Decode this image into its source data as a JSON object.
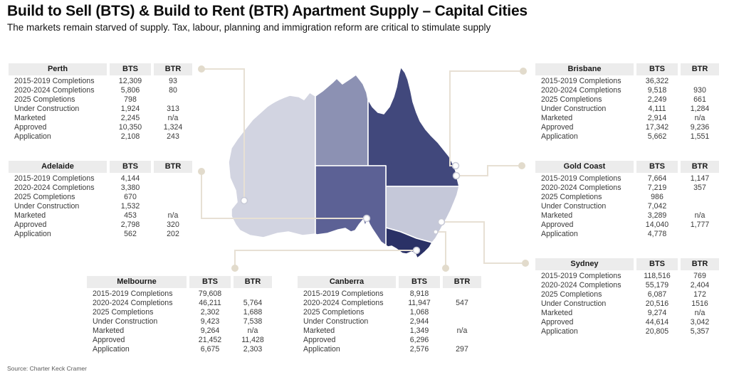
{
  "header": {
    "title": "Build to Sell (BTS) & Build to Rent (BTR) Apartment Supply – Capital Cities",
    "subtitle": "The markets remain starved of supply. Tax, labour, planning and immigration reform are critical to stimulate supply"
  },
  "source": "Source: Charter Keck Cramer",
  "map": {
    "leader_color": "#e7e0d4",
    "end_dot_color": "#e2dbcc",
    "city_dot_fill": "#ffffff",
    "city_dot_stroke": "#c7c9d6",
    "states": [
      {
        "name": "western-australia",
        "color": "#d2d4e1"
      },
      {
        "name": "northern-territory",
        "color": "#8c91b3"
      },
      {
        "name": "queensland",
        "color": "#41487c"
      },
      {
        "name": "south-australia",
        "color": "#5c6195"
      },
      {
        "name": "new-south-wales",
        "color": "#c5c8d9"
      },
      {
        "name": "victoria",
        "color": "#2a3166"
      }
    ]
  },
  "chart_data": {
    "type": "table",
    "title": "BTS & BTR Apartment Supply – Capital Cities",
    "columns": [
      "BTS",
      "BTR"
    ],
    "row_labels": [
      "2015-2019 Completions",
      "2020-2024 Completions",
      "2025 Completions",
      "Under Construction",
      "Marketed",
      "Approved",
      "Application"
    ],
    "cities": [
      {
        "name": "Perth",
        "BTS": [
          "12,309",
          "5,806",
          "798",
          "1,924",
          "2,245",
          "10,350",
          "2,108"
        ],
        "BTR": [
          "93",
          "80",
          "",
          "313",
          "n/a",
          "1,324",
          "243"
        ]
      },
      {
        "name": "Adelaide",
        "BTS": [
          "4,144",
          "3,380",
          "670",
          "1,532",
          "453",
          "2,798",
          "562"
        ],
        "BTR": [
          "",
          "",
          "",
          "",
          "n/a",
          "320",
          "202"
        ]
      },
      {
        "name": "Melbourne",
        "BTS": [
          "79,608",
          "46,211",
          "2,302",
          "9,423",
          "9,264",
          "21,452",
          "6,675"
        ],
        "BTR": [
          "",
          "5,764",
          "1,688",
          "7,538",
          "n/a",
          "11,428",
          "2,303"
        ]
      },
      {
        "name": "Canberra",
        "BTS": [
          "8,918",
          "11,947",
          "1,068",
          "2,944",
          "1,349",
          "6,296",
          "2,576"
        ],
        "BTR": [
          "",
          "547",
          "",
          "",
          "n/a",
          "",
          "297"
        ]
      },
      {
        "name": "Brisbane",
        "BTS": [
          "36,322",
          "9,518",
          "2,249",
          "4,111",
          "2,914",
          "17,342",
          "5,662"
        ],
        "BTR": [
          "",
          "930",
          "661",
          "1,284",
          "n/a",
          "9,236",
          "1,551"
        ]
      },
      {
        "name": "Gold Coast",
        "BTS": [
          "7,664",
          "7,219",
          "986",
          "7,042",
          "3,289",
          "14,040",
          "4,778"
        ],
        "BTR": [
          "1,147",
          "357",
          "",
          "",
          "n/a",
          "1,777",
          ""
        ]
      },
      {
        "name": "Sydney",
        "BTS": [
          "118,516",
          "55,179",
          "6,087",
          "20,516",
          "9,274",
          "44,614",
          "20,805"
        ],
        "BTR": [
          "769",
          "2,404",
          "172",
          "1516",
          "n/a",
          "3,042",
          "5,357"
        ]
      }
    ]
  }
}
